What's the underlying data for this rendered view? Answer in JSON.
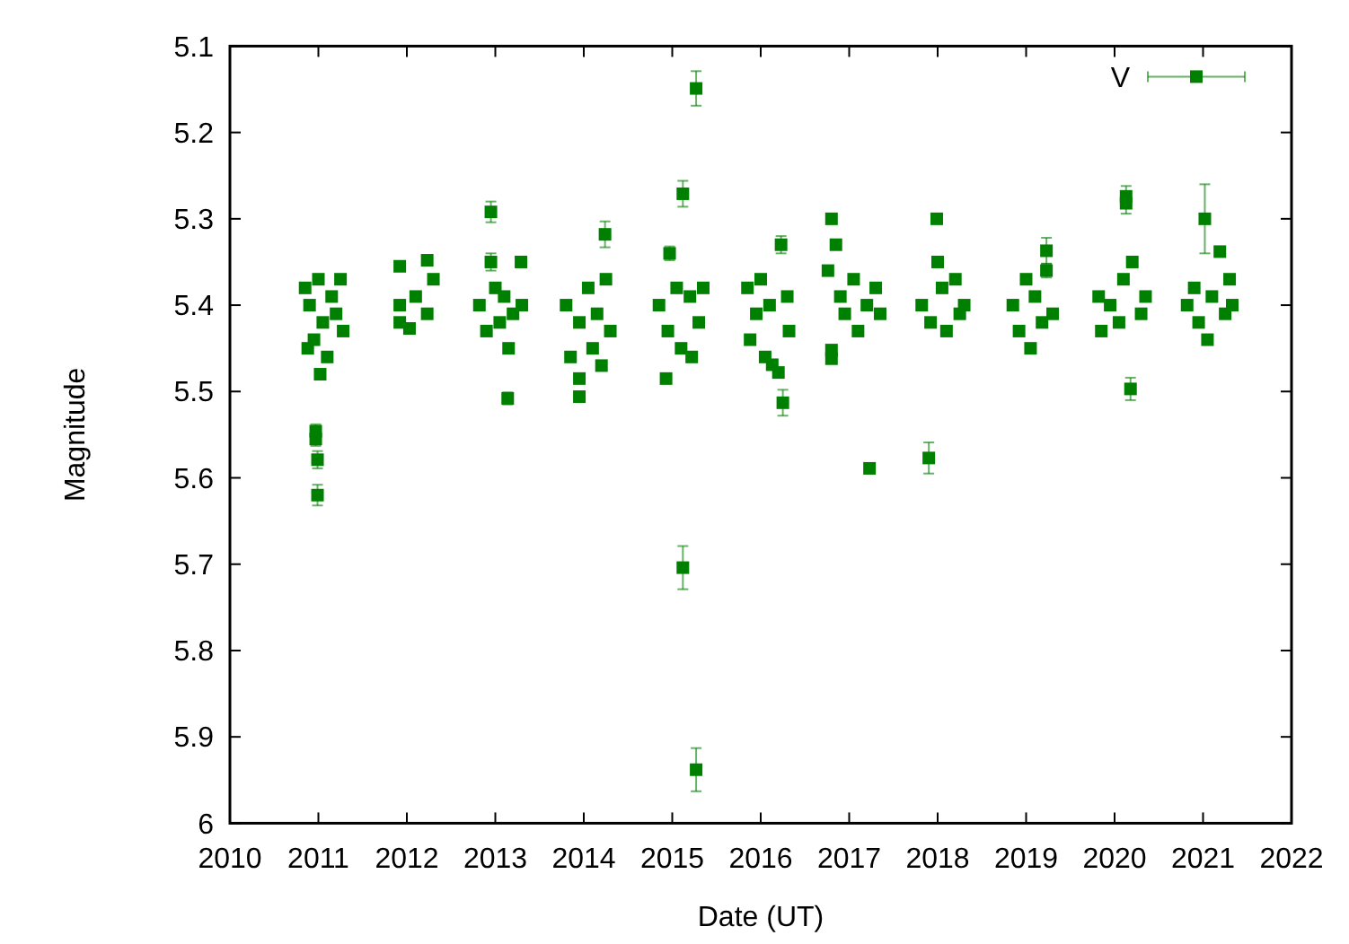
{
  "chart_data": {
    "type": "scatter",
    "xlabel": "Date (UT)",
    "ylabel": "Magnitude",
    "xlim": [
      2010,
      2022
    ],
    "ylim": [
      6,
      5.1
    ],
    "xticks": [
      2010,
      2011,
      2012,
      2013,
      2014,
      2015,
      2016,
      2017,
      2018,
      2019,
      2020,
      2021,
      2022
    ],
    "yticks": [
      5.1,
      5.2,
      5.3,
      5.4,
      5.5,
      5.6,
      5.7,
      5.8,
      5.9,
      6
    ],
    "legend": "top right",
    "marker": "square",
    "series": [
      {
        "name": "V",
        "color": "#008000",
        "x": [
          2010.85,
          2010.9,
          2010.95,
          2011.0,
          2011.05,
          2011.1,
          2011.15,
          2011.2,
          2011.25,
          2011.28,
          2010.88,
          2011.02,
          2010.97,
          2010.97,
          2010.99,
          2010.99,
          2011.92,
          2011.92,
          2011.92,
          2012.03,
          2012.1,
          2012.23,
          2012.23,
          2012.3,
          2012.82,
          2012.9,
          2012.95,
          2012.95,
          2013.0,
          2013.05,
          2013.1,
          2013.14,
          2013.2,
          2013.29,
          2013.3,
          2013.15,
          2013.8,
          2013.85,
          2013.95,
          2013.95,
          2013.95,
          2014.05,
          2014.1,
          2014.15,
          2014.24,
          2014.25,
          2014.3,
          2014.2,
          2014.85,
          2014.93,
          2014.97,
          2014.95,
          2015.05,
          2015.1,
          2015.12,
          2015.12,
          2015.2,
          2015.27,
          2015.27,
          2015.3,
          2015.35,
          2015.22,
          2015.85,
          2015.88,
          2015.95,
          2016.0,
          2016.05,
          2016.1,
          2016.13,
          2016.2,
          2016.23,
          2016.25,
          2016.3,
          2016.32,
          2016.76,
          2016.8,
          2016.8,
          2016.8,
          2016.85,
          2016.9,
          2016.95,
          2017.05,
          2017.1,
          2017.2,
          2017.23,
          2017.3,
          2017.35,
          2017.82,
          2017.9,
          2017.92,
          2017.99,
          2018.0,
          2018.05,
          2018.1,
          2018.2,
          2018.25,
          2018.3,
          2018.85,
          2018.92,
          2019.0,
          2019.05,
          2019.1,
          2019.18,
          2019.23,
          2019.23,
          2019.3,
          2019.82,
          2019.85,
          2019.95,
          2020.05,
          2020.1,
          2020.13,
          2020.13,
          2020.18,
          2020.2,
          2020.3,
          2020.35,
          2020.82,
          2020.9,
          2020.95,
          2021.02,
          2021.05,
          2021.1,
          2021.19,
          2021.25,
          2021.3,
          2021.33
        ],
        "values": [
          5.38,
          5.4,
          5.44,
          5.37,
          5.42,
          5.46,
          5.39,
          5.41,
          5.37,
          5.43,
          5.45,
          5.48,
          5.546,
          5.555,
          5.579,
          5.62,
          5.355,
          5.4,
          5.42,
          5.427,
          5.39,
          5.348,
          5.41,
          5.37,
          5.4,
          5.43,
          5.292,
          5.35,
          5.38,
          5.42,
          5.39,
          5.508,
          5.41,
          5.35,
          5.4,
          5.45,
          5.4,
          5.46,
          5.485,
          5.506,
          5.42,
          5.38,
          5.45,
          5.41,
          5.318,
          5.37,
          5.43,
          5.47,
          5.4,
          5.485,
          5.34,
          5.43,
          5.38,
          5.45,
          5.271,
          5.704,
          5.39,
          5.149,
          5.938,
          5.42,
          5.38,
          5.46,
          5.38,
          5.44,
          5.41,
          5.37,
          5.46,
          5.4,
          5.469,
          5.478,
          5.33,
          5.513,
          5.39,
          5.43,
          5.36,
          5.452,
          5.462,
          5.3,
          5.33,
          5.39,
          5.41,
          5.37,
          5.43,
          5.4,
          5.589,
          5.38,
          5.41,
          5.4,
          5.577,
          5.42,
          5.3,
          5.35,
          5.38,
          5.43,
          5.37,
          5.41,
          5.4,
          5.4,
          5.43,
          5.37,
          5.45,
          5.39,
          5.42,
          5.337,
          5.36,
          5.41,
          5.39,
          5.43,
          5.4,
          5.42,
          5.37,
          5.274,
          5.282,
          5.497,
          5.35,
          5.41,
          5.39,
          5.4,
          5.38,
          5.42,
          5.3,
          5.44,
          5.39,
          5.338,
          5.41,
          5.37,
          5.4
        ],
        "errors": [
          0.005,
          0.005,
          0.005,
          0.005,
          0.005,
          0.005,
          0.005,
          0.005,
          0.005,
          0.005,
          0.005,
          0.005,
          0.008,
          0.008,
          0.01,
          0.012,
          0.005,
          0.005,
          0.005,
          0.005,
          0.005,
          0.005,
          0.005,
          0.005,
          0.005,
          0.005,
          0.012,
          0.01,
          0.005,
          0.005,
          0.005,
          0.007,
          0.005,
          0.005,
          0.005,
          0.005,
          0.005,
          0.005,
          0.005,
          0.005,
          0.005,
          0.005,
          0.005,
          0.005,
          0.015,
          0.005,
          0.005,
          0.005,
          0.005,
          0.005,
          0.008,
          0.005,
          0.005,
          0.005,
          0.015,
          0.025,
          0.005,
          0.02,
          0.025,
          0.005,
          0.005,
          0.005,
          0.005,
          0.005,
          0.005,
          0.005,
          0.005,
          0.005,
          0.005,
          0.005,
          0.01,
          0.015,
          0.005,
          0.005,
          0.005,
          0.005,
          0.005,
          0.005,
          0.005,
          0.005,
          0.005,
          0.005,
          0.005,
          0.005,
          0.005,
          0.005,
          0.005,
          0.005,
          0.018,
          0.005,
          0.005,
          0.005,
          0.005,
          0.005,
          0.005,
          0.005,
          0.005,
          0.005,
          0.005,
          0.005,
          0.005,
          0.005,
          0.005,
          0.015,
          0.008,
          0.005,
          0.005,
          0.005,
          0.005,
          0.005,
          0.005,
          0.012,
          0.012,
          0.013,
          0.005,
          0.005,
          0.005,
          0.005,
          0.005,
          0.005,
          0.04,
          0.005,
          0.005,
          0.005,
          0.005,
          0.005,
          0.005
        ]
      }
    ]
  }
}
